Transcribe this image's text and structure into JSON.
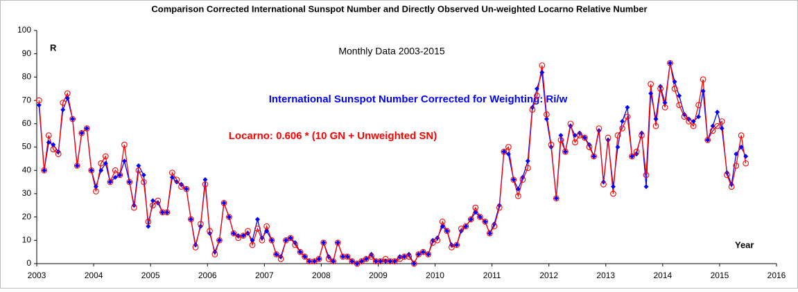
{
  "chart_data": {
    "type": "line",
    "title": "Comparison Corrected International Sunspot Number and Directly Observed Un-weighted Locarno Relative Number",
    "subtitle": "Monthly Data 2003-2015",
    "y_label": "R",
    "x_label": "Year",
    "xlim": [
      2003,
      2016
    ],
    "xticks": [
      2003,
      2004,
      2005,
      2006,
      2007,
      2008,
      2009,
      2010,
      2011,
      2012,
      2013,
      2014,
      2015,
      2016
    ],
    "ylim": [
      0,
      100
    ],
    "yticks": [
      0,
      10,
      20,
      30,
      40,
      50,
      60,
      70,
      80,
      90,
      100
    ],
    "grid": false,
    "x": [
      2003.04,
      2003.13,
      2003.21,
      2003.29,
      2003.38,
      2003.46,
      2003.54,
      2003.63,
      2003.71,
      2003.79,
      2003.88,
      2003.96,
      2004.04,
      2004.13,
      2004.21,
      2004.29,
      2004.38,
      2004.46,
      2004.54,
      2004.63,
      2004.71,
      2004.79,
      2004.88,
      2004.96,
      2005.04,
      2005.13,
      2005.21,
      2005.29,
      2005.38,
      2005.46,
      2005.54,
      2005.63,
      2005.71,
      2005.79,
      2005.88,
      2005.96,
      2006.04,
      2006.13,
      2006.21,
      2006.29,
      2006.38,
      2006.46,
      2006.54,
      2006.63,
      2006.71,
      2006.79,
      2006.88,
      2006.96,
      2007.04,
      2007.13,
      2007.21,
      2007.29,
      2007.38,
      2007.46,
      2007.54,
      2007.63,
      2007.71,
      2007.79,
      2007.88,
      2007.96,
      2008.04,
      2008.13,
      2008.21,
      2008.29,
      2008.38,
      2008.46,
      2008.54,
      2008.63,
      2008.71,
      2008.79,
      2008.88,
      2008.96,
      2009.04,
      2009.13,
      2009.21,
      2009.29,
      2009.38,
      2009.46,
      2009.54,
      2009.63,
      2009.71,
      2009.79,
      2009.88,
      2009.96,
      2010.04,
      2010.13,
      2010.21,
      2010.29,
      2010.38,
      2010.46,
      2010.54,
      2010.63,
      2010.71,
      2010.79,
      2010.88,
      2010.96,
      2011.04,
      2011.13,
      2011.21,
      2011.29,
      2011.38,
      2011.46,
      2011.54,
      2011.63,
      2011.71,
      2011.79,
      2011.88,
      2011.96,
      2012.04,
      2012.13,
      2012.21,
      2012.29,
      2012.38,
      2012.46,
      2012.54,
      2012.63,
      2012.71,
      2012.79,
      2012.88,
      2012.96,
      2013.04,
      2013.13,
      2013.21,
      2013.29,
      2013.38,
      2013.46,
      2013.54,
      2013.63,
      2013.71,
      2013.79,
      2013.88,
      2013.96,
      2014.04,
      2014.13,
      2014.21,
      2014.29,
      2014.38,
      2014.46,
      2014.54,
      2014.63,
      2014.71,
      2014.79,
      2014.88,
      2014.96,
      2015.04,
      2015.13,
      2015.21,
      2015.29,
      2015.38,
      2015.46
    ],
    "series": [
      {
        "name": "International Sunspot Number Corrected for Weighting: Ri/w",
        "color": "#0000ff",
        "marker": "diamond",
        "values": [
          68,
          40,
          52,
          51,
          48,
          66,
          71,
          62,
          42,
          56,
          58,
          40,
          33,
          40,
          43,
          35,
          37,
          38,
          44,
          35,
          25,
          42,
          38,
          16,
          27,
          26,
          22,
          22,
          37,
          35,
          34,
          32,
          19,
          8,
          16,
          36,
          13,
          5,
          10,
          26,
          20,
          13,
          12,
          12,
          13,
          10,
          19,
          11,
          14,
          10,
          4,
          3,
          10,
          11,
          9,
          5,
          3,
          1,
          1,
          2,
          9,
          3,
          1,
          9,
          3,
          3,
          1,
          0,
          1,
          2,
          4,
          1,
          1,
          1,
          1,
          1,
          3,
          3,
          4,
          0,
          4,
          5,
          4,
          10,
          11,
          16,
          14,
          8,
          8,
          14,
          16,
          19,
          22,
          20,
          18,
          13,
          17,
          25,
          48,
          47,
          36,
          32,
          37,
          44,
          67,
          75,
          82,
          62,
          50,
          28,
          55,
          48,
          59,
          55,
          56,
          54,
          51,
          46,
          57,
          35,
          53,
          33,
          50,
          61,
          67,
          46,
          47,
          56,
          33,
          73,
          62,
          76,
          69,
          86,
          78,
          72,
          64,
          62,
          61,
          63,
          74,
          53,
          59,
          65,
          58,
          39,
          34,
          47,
          50,
          46
        ]
      },
      {
        "name": "Locarno: 0.606 * (10 GN + Unweighted SN)",
        "color": "#ff0000",
        "marker": "circle",
        "values": [
          70,
          40,
          55,
          49,
          47,
          69,
          73,
          62,
          42,
          56,
          58,
          40,
          31,
          43,
          46,
          35,
          40,
          38,
          51,
          35,
          24,
          40,
          35,
          18,
          25,
          27,
          22,
          22,
          39,
          36,
          33,
          32,
          19,
          7,
          17,
          34,
          14,
          4,
          10,
          26,
          20,
          13,
          11,
          12,
          14,
          8,
          15,
          10,
          16,
          10,
          4,
          2,
          10,
          11,
          8,
          5,
          3,
          1,
          1,
          2,
          9,
          2,
          1,
          9,
          3,
          3,
          1,
          0,
          1,
          2,
          3,
          1,
          1,
          2,
          1,
          1,
          2,
          3,
          3,
          0,
          4,
          5,
          4,
          9,
          10,
          18,
          14,
          7,
          8,
          15,
          16,
          19,
          24,
          20,
          18,
          13,
          16,
          24,
          48,
          50,
          36,
          29,
          36,
          41,
          66,
          72,
          85,
          64,
          51,
          28,
          53,
          48,
          60,
          52,
          55,
          54,
          50,
          46,
          58,
          34,
          54,
          30,
          55,
          58,
          63,
          46,
          48,
          55,
          38,
          77,
          59,
          75,
          67,
          86,
          75,
          68,
          63,
          61,
          59,
          68,
          79,
          53,
          57,
          59,
          61,
          38,
          33,
          42,
          55,
          43
        ]
      }
    ]
  }
}
